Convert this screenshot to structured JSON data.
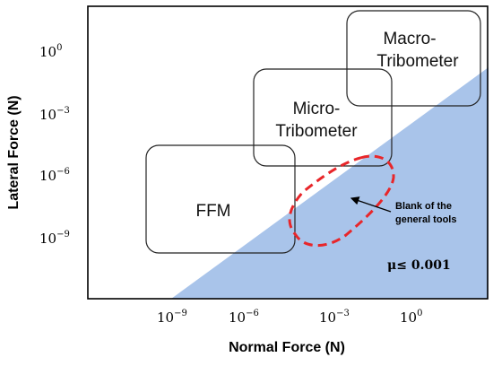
{
  "axes": {
    "xlabel": "Normal Force (N)",
    "ylabel": "Lateral Force (N)",
    "x_ticks": [
      {
        "base": "10",
        "exp": "−9"
      },
      {
        "base": "10",
        "exp": "−6"
      },
      {
        "base": "10",
        "exp": "−3"
      },
      {
        "base": "10",
        "exp": "0"
      }
    ],
    "y_ticks": [
      {
        "base": "10",
        "exp": "0"
      },
      {
        "base": "10",
        "exp": "−3"
      },
      {
        "base": "10",
        "exp": "−6"
      },
      {
        "base": "10",
        "exp": "−9"
      }
    ]
  },
  "regions": {
    "ffm": {
      "label_lines": [
        "FFM"
      ]
    },
    "micro": {
      "label_lines": [
        "Micro-",
        "Tribometer"
      ]
    },
    "macro": {
      "label_lines": [
        "Macro-",
        "Tribometer"
      ]
    }
  },
  "annotation": {
    "lines": [
      "Blank of the",
      "general tools"
    ]
  },
  "friction": {
    "label": "μ≤ 0.001"
  },
  "colors": {
    "shaded": "#a9c4ea",
    "blank_outline": "#e8262a",
    "box_stroke": "#222222"
  }
}
